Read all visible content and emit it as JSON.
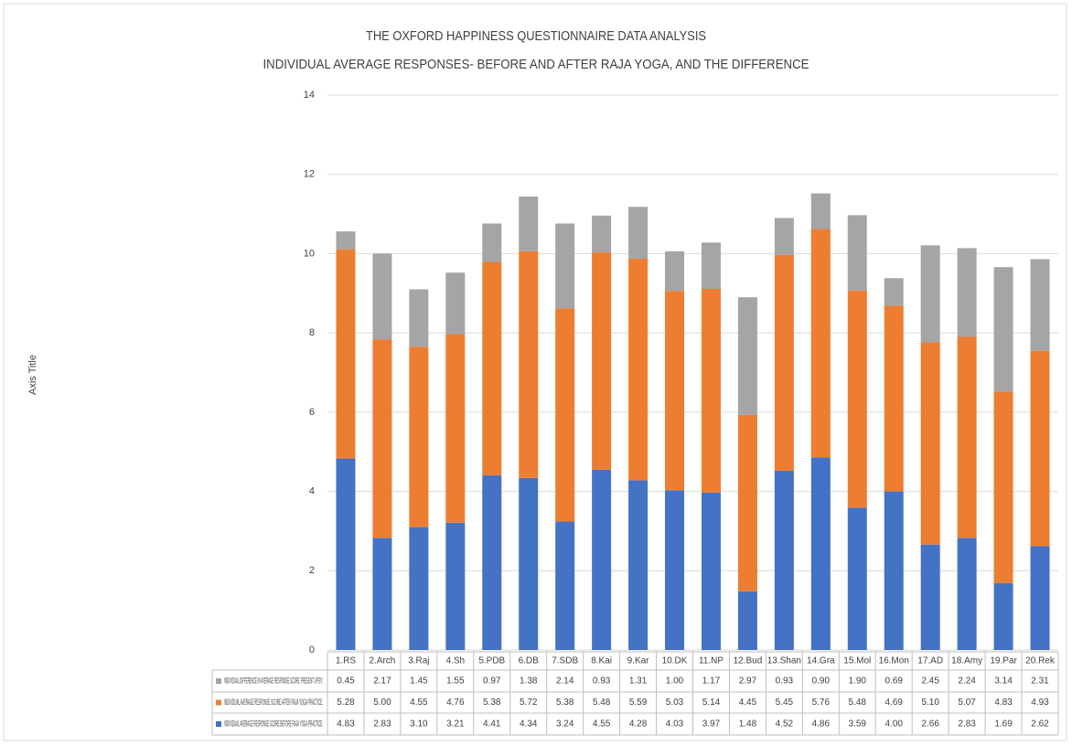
{
  "chart_data": {
    "type": "stacked_bar",
    "title": "THE OXFORD HAPPINESS QUESTIONNAIRE DATA ANALYSIS",
    "subtitle": "INDIVIDUAL AVERAGE RESPONSES- BEFORE AND AFTER RAJA YOGA, AND THE DIFFERENCE",
    "y_label": "Axis Title",
    "categories": [
      "1.RS",
      "2.Arch",
      "3.Raj",
      "4.Sh",
      "5.PDB",
      "6.DB",
      "7.SDB",
      "8.Kai",
      "9.Kar",
      "10.DK",
      "11.NP",
      "12.Bud",
      "13.Shan",
      "14.Gra",
      "15.Mol",
      "16.Mon",
      "17.AD",
      "18.Amy",
      "19.Par",
      "20.Rek"
    ],
    "series": [
      {
        "name": "INDIVIDUAL AVERAGE RESPONSE SCORE BEFORE RAJA YOGA PRACTICE:",
        "color": "#4472c4",
        "values": [
          4.83,
          2.83,
          3.1,
          3.21,
          4.41,
          4.34,
          3.24,
          4.55,
          4.28,
          4.03,
          3.97,
          1.48,
          4.52,
          4.86,
          3.59,
          4.0,
          2.66,
          2.83,
          1.69,
          2.62
        ],
        "value_labels": [
          "4.83",
          "2.83",
          "3.10",
          "3.21",
          "4.41",
          "4.34",
          "3.24",
          "4.55",
          "4.28",
          "4.03",
          "3.97",
          "1.48",
          "4.52",
          "4.86",
          "3.59",
          "4.00",
          "2.66",
          "2.83",
          "1.69",
          "2.62"
        ]
      },
      {
        "name": "INDIVIDUAL AVERAGE RESPONSE SCORE AFTER RAJA YOGA PRACTICE:",
        "color": "#ed7d31",
        "values": [
          5.28,
          5.0,
          4.55,
          4.76,
          5.38,
          5.72,
          5.38,
          5.48,
          5.59,
          5.03,
          5.14,
          4.45,
          5.45,
          5.76,
          5.48,
          4.69,
          5.1,
          5.07,
          4.83,
          4.93
        ],
        "value_labels": [
          "5.28",
          "5.00",
          "4.55",
          "4.76",
          "5.38",
          "5.72",
          "5.38",
          "5.48",
          "5.59",
          "5.03",
          "5.14",
          "4.45",
          "5.45",
          "5.76",
          "5.48",
          "4.69",
          "5.10",
          "5.07",
          "4.83",
          "4.93"
        ]
      },
      {
        "name": "INDIVIDUAL DIFFERENCE IN  AVERAGE RESPONSE SCORE: PRESENT UP BY:",
        "color": "#a5a5a5",
        "values": [
          0.45,
          2.17,
          1.45,
          1.55,
          0.97,
          1.38,
          2.14,
          0.93,
          1.31,
          1.0,
          1.17,
          2.97,
          0.93,
          0.9,
          1.9,
          0.69,
          2.45,
          2.24,
          3.14,
          2.31
        ],
        "value_labels": [
          "0.45",
          "2.17",
          "1.45",
          "1.55",
          "0.97",
          "1.38",
          "2.14",
          "0.93",
          "1.31",
          "1.00",
          "1.17",
          "2.97",
          "0.93",
          "0.90",
          "1.90",
          "0.69",
          "2.45",
          "2.24",
          "3.14",
          "2.31"
        ]
      }
    ],
    "ylim": [
      0,
      14
    ],
    "yticks": [
      0,
      2,
      4,
      6,
      8,
      10,
      12,
      14
    ],
    "grid": true
  }
}
